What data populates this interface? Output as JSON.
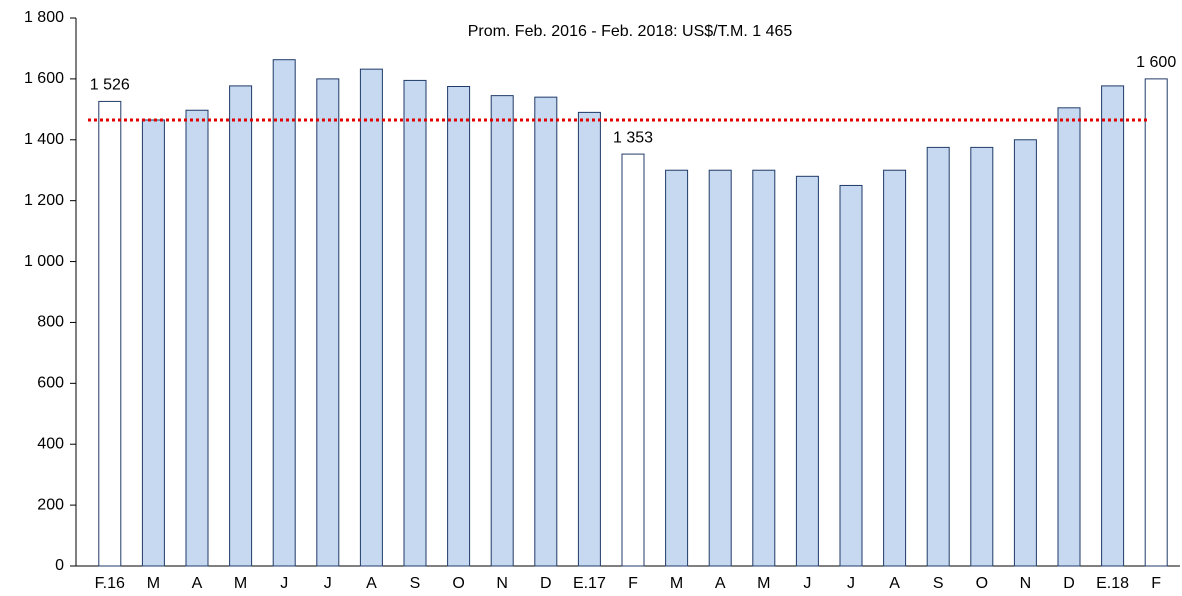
{
  "chart_data": {
    "type": "bar",
    "annotation": "Prom. Feb. 2016 - Feb. 2018: US$/T.M. 1 465",
    "average": 1465,
    "average_color": "#e00000",
    "categories": [
      "F.16",
      "M",
      "A",
      "M",
      "J",
      "J",
      "A",
      "S",
      "O",
      "N",
      "D",
      "E.17",
      "F",
      "M",
      "A",
      "M",
      "J",
      "J",
      "A",
      "S",
      "O",
      "N",
      "D",
      "E.18",
      "F"
    ],
    "values": [
      1526,
      1465,
      1497,
      1577,
      1663,
      1600,
      1632,
      1595,
      1575,
      1545,
      1540,
      1490,
      1353,
      1300,
      1300,
      1300,
      1280,
      1250,
      1300,
      1375,
      1375,
      1400,
      1505,
      1577,
      1600
    ],
    "value_labels": [
      "1 526",
      null,
      null,
      null,
      null,
      null,
      null,
      null,
      null,
      null,
      null,
      null,
      "1 353",
      null,
      null,
      null,
      null,
      null,
      null,
      null,
      null,
      null,
      null,
      null,
      "1 600"
    ],
    "colors": [
      "#ffffff",
      "#c6d9f1",
      "#c6d9f1",
      "#c6d9f1",
      "#c6d9f1",
      "#c6d9f1",
      "#c6d9f1",
      "#c6d9f1",
      "#c6d9f1",
      "#c6d9f1",
      "#c6d9f1",
      "#c6d9f1",
      "#ffffff",
      "#c6d9f1",
      "#c6d9f1",
      "#c6d9f1",
      "#c6d9f1",
      "#c6d9f1",
      "#c6d9f1",
      "#c6d9f1",
      "#c6d9f1",
      "#c6d9f1",
      "#c6d9f1",
      "#c6d9f1",
      "#ffffff"
    ],
    "edge_color": "#1f3a68",
    "ylim": [
      0,
      1800
    ],
    "yticks": [
      0,
      200,
      400,
      600,
      800,
      {
        "value": 1000,
        "label": "1 000"
      },
      {
        "value": 1200,
        "label": "1 200"
      },
      {
        "value": 1400,
        "label": "1 400"
      },
      {
        "value": 1600,
        "label": "1 600"
      },
      {
        "value": 1800,
        "label": "1 800"
      }
    ],
    "grid": false
  }
}
